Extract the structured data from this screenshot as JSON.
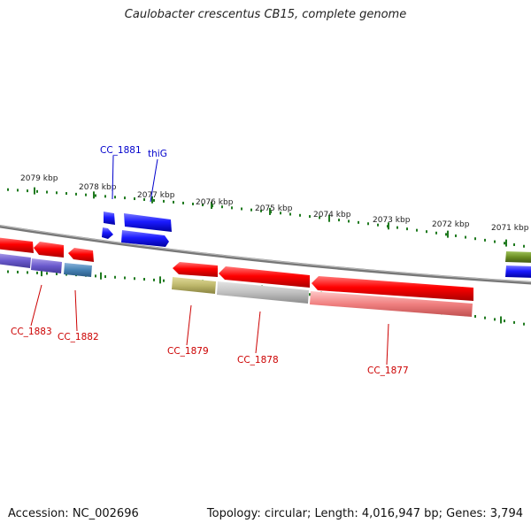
{
  "title": "Caulobacter crescentus CB15, complete genome",
  "footer": {
    "accession": "Accession: NC_002696",
    "summary": "Topology: circular; Length: 4,016,947 bp; Genes: 3,794"
  },
  "colors": {
    "forward_gene": "#1a1aff",
    "reverse_gene": "#ee0000",
    "tick": "#1f7a1f",
    "backbone": "#888888",
    "forward_label": "#0000cc",
    "reverse_label": "#cc0000"
  },
  "scale_labels": [
    "2079 kbp",
    "2078 kbp",
    "2077 kbp",
    "2076 kbp",
    "2075 kbp",
    "2074 kbp",
    "2073 kbp",
    "2072 kbp",
    "2071 kbp"
  ],
  "gene_labels": {
    "forward": [
      "CC_1881",
      "thiG"
    ],
    "reverse": [
      "CC_1883",
      "CC_1882",
      "CC_1879",
      "CC_1878",
      "CC_1877"
    ]
  }
}
